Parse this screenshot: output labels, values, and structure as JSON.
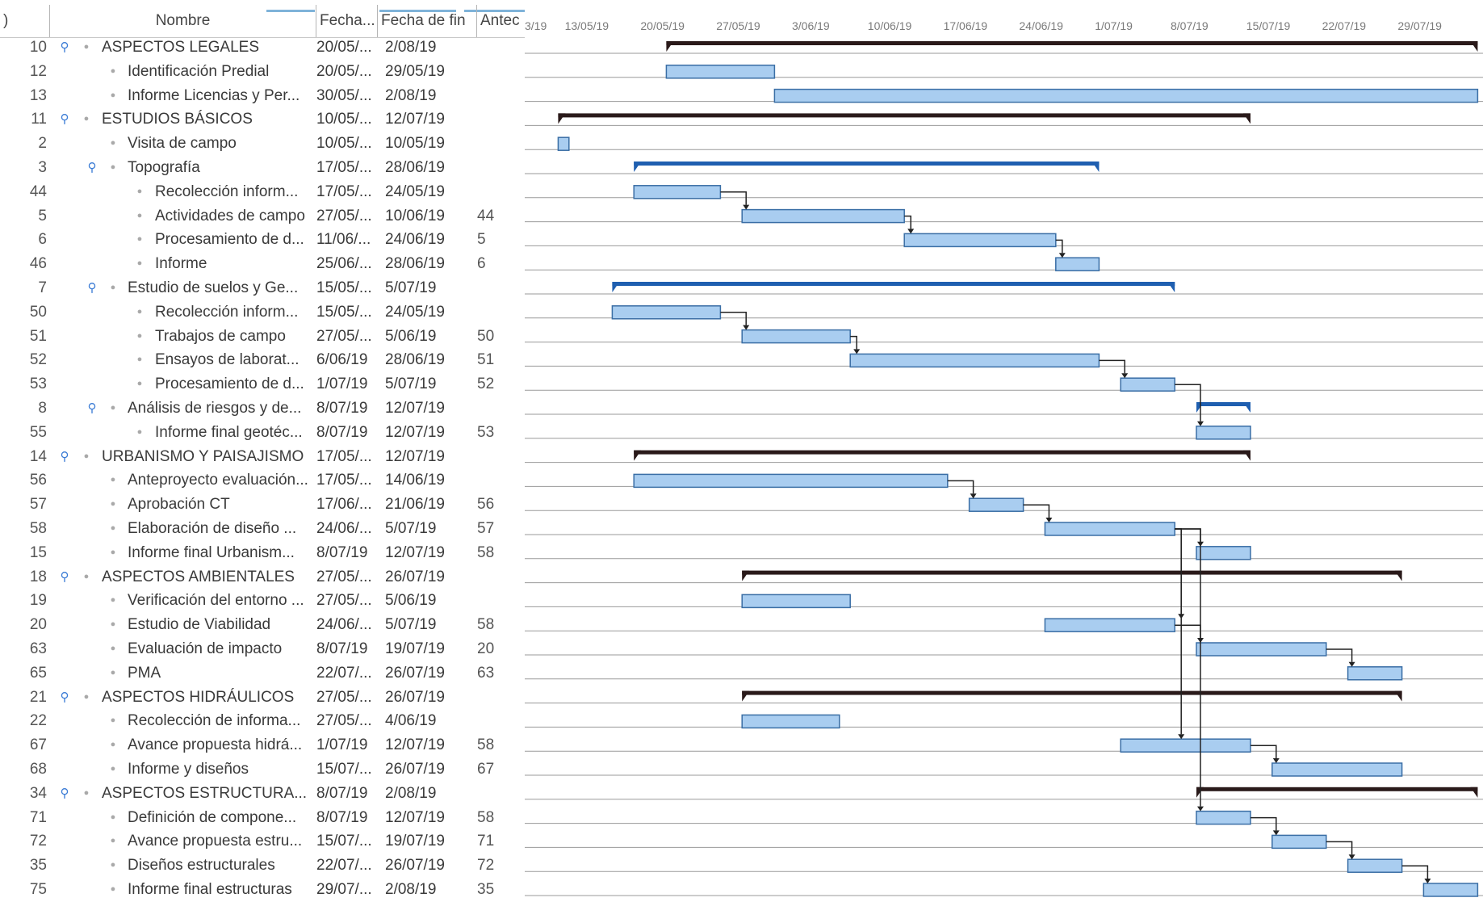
{
  "columns": {
    "id": ")",
    "name": "Nombre",
    "start": "Fecha...",
    "end": "Fecha de fin",
    "pred": "Antec"
  },
  "timescale": {
    "ticks": [
      "3/19",
      "13/05/19",
      "20/05/19",
      "27/05/19",
      "3/06/19",
      "10/06/19",
      "17/06/19",
      "24/06/19",
      "1/07/19",
      "8/07/19",
      "15/07/19",
      "22/07/19",
      "29/07/19"
    ]
  },
  "tasks": [
    {
      "id": "10",
      "name": "ASPECTOS LEGALES",
      "start": "20/05/...",
      "end": "2/08/19",
      "pred": "",
      "level": 0,
      "icon": true
    },
    {
      "id": "12",
      "name": "Identificación Predial",
      "start": "20/05/...",
      "end": "29/05/19",
      "pred": "",
      "level": 1,
      "icon": false
    },
    {
      "id": "13",
      "name": "Informe Licencias y Per...",
      "start": "30/05/...",
      "end": "2/08/19",
      "pred": "",
      "level": 1,
      "icon": false
    },
    {
      "id": "11",
      "name": "ESTUDIOS BÁSICOS",
      "start": "10/05/...",
      "end": "12/07/19",
      "pred": "",
      "level": 0,
      "icon": true
    },
    {
      "id": "2",
      "name": "Visita de campo",
      "start": "10/05/...",
      "end": "10/05/19",
      "pred": "",
      "level": 1,
      "icon": false
    },
    {
      "id": "3",
      "name": "Topografía",
      "start": "17/05/...",
      "end": "28/06/19",
      "pred": "",
      "level": 1,
      "icon": true
    },
    {
      "id": "44",
      "name": "Recolección inform...",
      "start": "17/05/...",
      "end": "24/05/19",
      "pred": "",
      "level": 2,
      "icon": false
    },
    {
      "id": "5",
      "name": "Actividades de campo",
      "start": "27/05/...",
      "end": "10/06/19",
      "pred": "44",
      "level": 2,
      "icon": false
    },
    {
      "id": "6",
      "name": "Procesamiento de d...",
      "start": "11/06/...",
      "end": "24/06/19",
      "pred": "5",
      "level": 2,
      "icon": false
    },
    {
      "id": "46",
      "name": "Informe",
      "start": "25/06/...",
      "end": "28/06/19",
      "pred": "6",
      "level": 2,
      "icon": false
    },
    {
      "id": "7",
      "name": "Estudio de suelos y Ge...",
      "start": "15/05/...",
      "end": "5/07/19",
      "pred": "",
      "level": 1,
      "icon": true
    },
    {
      "id": "50",
      "name": "Recolección inform...",
      "start": "15/05/...",
      "end": "24/05/19",
      "pred": "",
      "level": 2,
      "icon": false
    },
    {
      "id": "51",
      "name": "Trabajos de campo",
      "start": "27/05/...",
      "end": "5/06/19",
      "pred": "50",
      "level": 2,
      "icon": false
    },
    {
      "id": "52",
      "name": "Ensayos de laborat...",
      "start": "6/06/19",
      "end": "28/06/19",
      "pred": "51",
      "level": 2,
      "icon": false
    },
    {
      "id": "53",
      "name": "Procesamiento de d...",
      "start": "1/07/19",
      "end": "5/07/19",
      "pred": "52",
      "level": 2,
      "icon": false
    },
    {
      "id": "8",
      "name": "Análisis de riesgos y de...",
      "start": "8/07/19",
      "end": "12/07/19",
      "pred": "",
      "level": 1,
      "icon": true
    },
    {
      "id": "55",
      "name": "Informe final geotéc...",
      "start": "8/07/19",
      "end": "12/07/19",
      "pred": "53",
      "level": 2,
      "icon": false
    },
    {
      "id": "14",
      "name": "URBANISMO Y PAISAJISMO",
      "start": "17/05/...",
      "end": "12/07/19",
      "pred": "",
      "level": 0,
      "icon": true
    },
    {
      "id": "56",
      "name": "Anteproyecto evaluación...",
      "start": "17/05/...",
      "end": "14/06/19",
      "pred": "",
      "level": 1,
      "icon": false
    },
    {
      "id": "57",
      "name": "Aprobación CT",
      "start": "17/06/...",
      "end": "21/06/19",
      "pred": "56",
      "level": 1,
      "icon": false
    },
    {
      "id": "58",
      "name": "Elaboración de diseño ...",
      "start": "24/06/...",
      "end": "5/07/19",
      "pred": "57",
      "level": 1,
      "icon": false
    },
    {
      "id": "15",
      "name": "Informe final Urbanism...",
      "start": "8/07/19",
      "end": "12/07/19",
      "pred": "58",
      "level": 1,
      "icon": false
    },
    {
      "id": "18",
      "name": "ASPECTOS AMBIENTALES",
      "start": "27/05/...",
      "end": "26/07/19",
      "pred": "",
      "level": 0,
      "icon": true
    },
    {
      "id": "19",
      "name": "Verificación del entorno ...",
      "start": "27/05/...",
      "end": "5/06/19",
      "pred": "",
      "level": 1,
      "icon": false
    },
    {
      "id": "20",
      "name": "Estudio de Viabilidad",
      "start": "24/06/...",
      "end": "5/07/19",
      "pred": "58",
      "level": 1,
      "icon": false
    },
    {
      "id": "63",
      "name": "Evaluación de impacto",
      "start": "8/07/19",
      "end": "19/07/19",
      "pred": "20",
      "level": 1,
      "icon": false
    },
    {
      "id": "65",
      "name": "PMA",
      "start": "22/07/...",
      "end": "26/07/19",
      "pred": "63",
      "level": 1,
      "icon": false
    },
    {
      "id": "21",
      "name": "ASPECTOS HIDRÁULICOS",
      "start": "27/05/...",
      "end": "26/07/19",
      "pred": "",
      "level": 0,
      "icon": true
    },
    {
      "id": "22",
      "name": "Recolección de informa...",
      "start": "27/05/...",
      "end": "4/06/19",
      "pred": "",
      "level": 1,
      "icon": false
    },
    {
      "id": "67",
      "name": "Avance propuesta hidrá...",
      "start": "1/07/19",
      "end": "12/07/19",
      "pred": "58",
      "level": 1,
      "icon": false
    },
    {
      "id": "68",
      "name": "Informe y diseños",
      "start": "15/07/...",
      "end": "26/07/19",
      "pred": "67",
      "level": 1,
      "icon": false
    },
    {
      "id": "34",
      "name": "ASPECTOS ESTRUCTURA...",
      "start": "8/07/19",
      "end": "2/08/19",
      "pred": "",
      "level": 0,
      "icon": true
    },
    {
      "id": "71",
      "name": "Definición de compone...",
      "start": "8/07/19",
      "end": "12/07/19",
      "pred": "58",
      "level": 1,
      "icon": false
    },
    {
      "id": "72",
      "name": "Avance propuesta estru...",
      "start": "15/07/...",
      "end": "19/07/19",
      "pred": "71",
      "level": 1,
      "icon": false
    },
    {
      "id": "35",
      "name": "Diseños estructurales",
      "start": "22/07/...",
      "end": "26/07/19",
      "pred": "72",
      "level": 1,
      "icon": false
    },
    {
      "id": "75",
      "name": "Informe final estructuras",
      "start": "29/07/...",
      "end": "2/08/19",
      "pred": "35",
      "level": 1,
      "icon": false
    }
  ],
  "bars": [
    {
      "row": 0,
      "type": "summary",
      "start": "2019-05-20",
      "end": "2019-08-02"
    },
    {
      "row": 1,
      "type": "task",
      "start": "2019-05-20",
      "end": "2019-05-29"
    },
    {
      "row": 2,
      "type": "task",
      "start": "2019-05-30",
      "end": "2019-08-02"
    },
    {
      "row": 3,
      "type": "summary",
      "start": "2019-05-10",
      "end": "2019-07-12"
    },
    {
      "row": 4,
      "type": "task",
      "start": "2019-05-10",
      "end": "2019-05-10"
    },
    {
      "row": 5,
      "type": "subsummary",
      "start": "2019-05-17",
      "end": "2019-06-28"
    },
    {
      "row": 6,
      "type": "task",
      "start": "2019-05-17",
      "end": "2019-05-24"
    },
    {
      "row": 7,
      "type": "task",
      "start": "2019-05-27",
      "end": "2019-06-10"
    },
    {
      "row": 8,
      "type": "task",
      "start": "2019-06-11",
      "end": "2019-06-24"
    },
    {
      "row": 9,
      "type": "task",
      "start": "2019-06-25",
      "end": "2019-06-28"
    },
    {
      "row": 10,
      "type": "subsummary",
      "start": "2019-05-15",
      "end": "2019-07-05"
    },
    {
      "row": 11,
      "type": "task",
      "start": "2019-05-15",
      "end": "2019-05-24"
    },
    {
      "row": 12,
      "type": "task",
      "start": "2019-05-27",
      "end": "2019-06-05"
    },
    {
      "row": 13,
      "type": "task",
      "start": "2019-06-06",
      "end": "2019-06-28"
    },
    {
      "row": 14,
      "type": "task",
      "start": "2019-07-01",
      "end": "2019-07-05"
    },
    {
      "row": 15,
      "type": "subsummary",
      "start": "2019-07-08",
      "end": "2019-07-12"
    },
    {
      "row": 16,
      "type": "task",
      "start": "2019-07-08",
      "end": "2019-07-12"
    },
    {
      "row": 17,
      "type": "summary",
      "start": "2019-05-17",
      "end": "2019-07-12"
    },
    {
      "row": 18,
      "type": "task",
      "start": "2019-05-17",
      "end": "2019-06-14"
    },
    {
      "row": 19,
      "type": "task",
      "start": "2019-06-17",
      "end": "2019-06-21"
    },
    {
      "row": 20,
      "type": "task",
      "start": "2019-06-24",
      "end": "2019-07-05"
    },
    {
      "row": 21,
      "type": "task",
      "start": "2019-07-08",
      "end": "2019-07-12"
    },
    {
      "row": 22,
      "type": "summary",
      "start": "2019-05-27",
      "end": "2019-07-26"
    },
    {
      "row": 23,
      "type": "task",
      "start": "2019-05-27",
      "end": "2019-06-05"
    },
    {
      "row": 24,
      "type": "task",
      "start": "2019-06-24",
      "end": "2019-07-05"
    },
    {
      "row": 25,
      "type": "task",
      "start": "2019-07-08",
      "end": "2019-07-19"
    },
    {
      "row": 26,
      "type": "task",
      "start": "2019-07-22",
      "end": "2019-07-26"
    },
    {
      "row": 27,
      "type": "summary",
      "start": "2019-05-27",
      "end": "2019-07-26"
    },
    {
      "row": 28,
      "type": "task",
      "start": "2019-05-27",
      "end": "2019-06-04"
    },
    {
      "row": 29,
      "type": "task",
      "start": "2019-07-01",
      "end": "2019-07-12"
    },
    {
      "row": 30,
      "type": "task",
      "start": "2019-07-15",
      "end": "2019-07-26"
    },
    {
      "row": 31,
      "type": "summary",
      "start": "2019-07-08",
      "end": "2019-08-02"
    },
    {
      "row": 32,
      "type": "task",
      "start": "2019-07-08",
      "end": "2019-07-12"
    },
    {
      "row": 33,
      "type": "task",
      "start": "2019-07-15",
      "end": "2019-07-19"
    },
    {
      "row": 34,
      "type": "task",
      "start": "2019-07-22",
      "end": "2019-07-26"
    },
    {
      "row": 35,
      "type": "task",
      "start": "2019-07-29",
      "end": "2019-08-02"
    }
  ],
  "links": [
    {
      "from": 6,
      "to": 7
    },
    {
      "from": 7,
      "to": 8
    },
    {
      "from": 8,
      "to": 9
    },
    {
      "from": 11,
      "to": 12
    },
    {
      "from": 12,
      "to": 13
    },
    {
      "from": 13,
      "to": 14
    },
    {
      "from": 14,
      "to": 16
    },
    {
      "from": 18,
      "to": 19
    },
    {
      "from": 19,
      "to": 20
    },
    {
      "from": 20,
      "to": 21
    },
    {
      "from": 20,
      "to": 24
    },
    {
      "from": 24,
      "to": 25
    },
    {
      "from": 25,
      "to": 26
    },
    {
      "from": 20,
      "to": 29
    },
    {
      "from": 29,
      "to": 30
    },
    {
      "from": 20,
      "to": 32
    },
    {
      "from": 32,
      "to": 33
    },
    {
      "from": 33,
      "to": 34
    },
    {
      "from": 34,
      "to": 35
    }
  ],
  "colors": {
    "task_fill": "#a9cdf0",
    "task_stroke": "#3a6ea5",
    "summary": "#2a1a1a",
    "subsummary": "#1f5fb0",
    "link": "#222222",
    "gridline": "#9a9a9a",
    "pin_icon": "#3a7bd5"
  }
}
